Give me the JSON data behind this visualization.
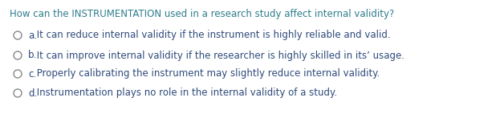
{
  "background_color": "#ffffff",
  "question_color": "#2e7d8c",
  "question_text": "How can the INSTRUMENTATION used in a research study affect internal validity?",
  "options": [
    {
      "label": "a.",
      "text": " It can reduce internal validity if the instrument is highly reliable and valid.",
      "color": "#2e4a7a"
    },
    {
      "label": "b.",
      "text": " It can improve internal validity if the researcher is highly skilled in its’ usage.",
      "color": "#2e4a7a"
    },
    {
      "label": "c.",
      "text": " Properly calibrating the instrument may slightly reduce internal validity.",
      "color": "#2e4a7a"
    },
    {
      "label": "d.",
      "text": " Instrumentation plays no role in the internal validity of a study.",
      "color": "#2e4a7a"
    }
  ],
  "circle_color": "#888888",
  "question_fontsize": 8.5,
  "option_fontsize": 8.5,
  "fig_width": 6.28,
  "fig_height": 1.42,
  "dpi": 100
}
